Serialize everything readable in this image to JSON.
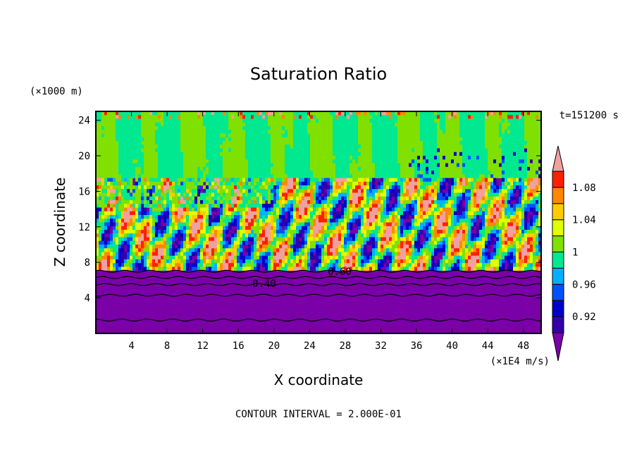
{
  "chart_data": {
    "type": "heatmap",
    "title": "Saturation Ratio",
    "xlabel": "X coordinate",
    "ylabel": "Z coordinate",
    "x_unit": "(×1E4 m/s)",
    "y_unit": "(×1000 m)",
    "time_label": "t=151200 s",
    "footer": "CONTOUR INTERVAL = 2.000E-01",
    "xlim": [
      0,
      50
    ],
    "ylim": [
      0,
      25
    ],
    "x_ticks": [
      "4",
      "8",
      "12",
      "16",
      "20",
      "24",
      "28",
      "32",
      "36",
      "40",
      "44",
      "48"
    ],
    "y_ticks": [
      "4",
      "8",
      "12",
      "16",
      "20",
      "24"
    ],
    "contour_labels": [
      "0.40",
      "0.60"
    ],
    "colorbar": {
      "levels": [
        {
          "upper": "0.90",
          "color": "#7a00a8"
        },
        {
          "upper": "0.92",
          "color": "#3300aa"
        },
        {
          "upper": "0.94",
          "color": "#0000c8"
        },
        {
          "upper": "0.96",
          "color": "#0050ff"
        },
        {
          "upper": "0.98",
          "color": "#00b0ff"
        },
        {
          "upper": "1.00",
          "color": "#00e890"
        },
        {
          "upper": "1.02",
          "color": "#80e000"
        },
        {
          "upper": "1.04",
          "color": "#e0ff00"
        },
        {
          "upper": "1.06",
          "color": "#ffcc00"
        },
        {
          "upper": "1.08",
          "color": "#ff8800"
        },
        {
          "upper": "1.10",
          "color": "#ff2000"
        },
        {
          "upper": "max",
          "color": "#f0a0a0"
        }
      ],
      "tick_labels": [
        "0.92",
        "0.96",
        "1",
        "1.04",
        "1.08"
      ]
    }
  }
}
